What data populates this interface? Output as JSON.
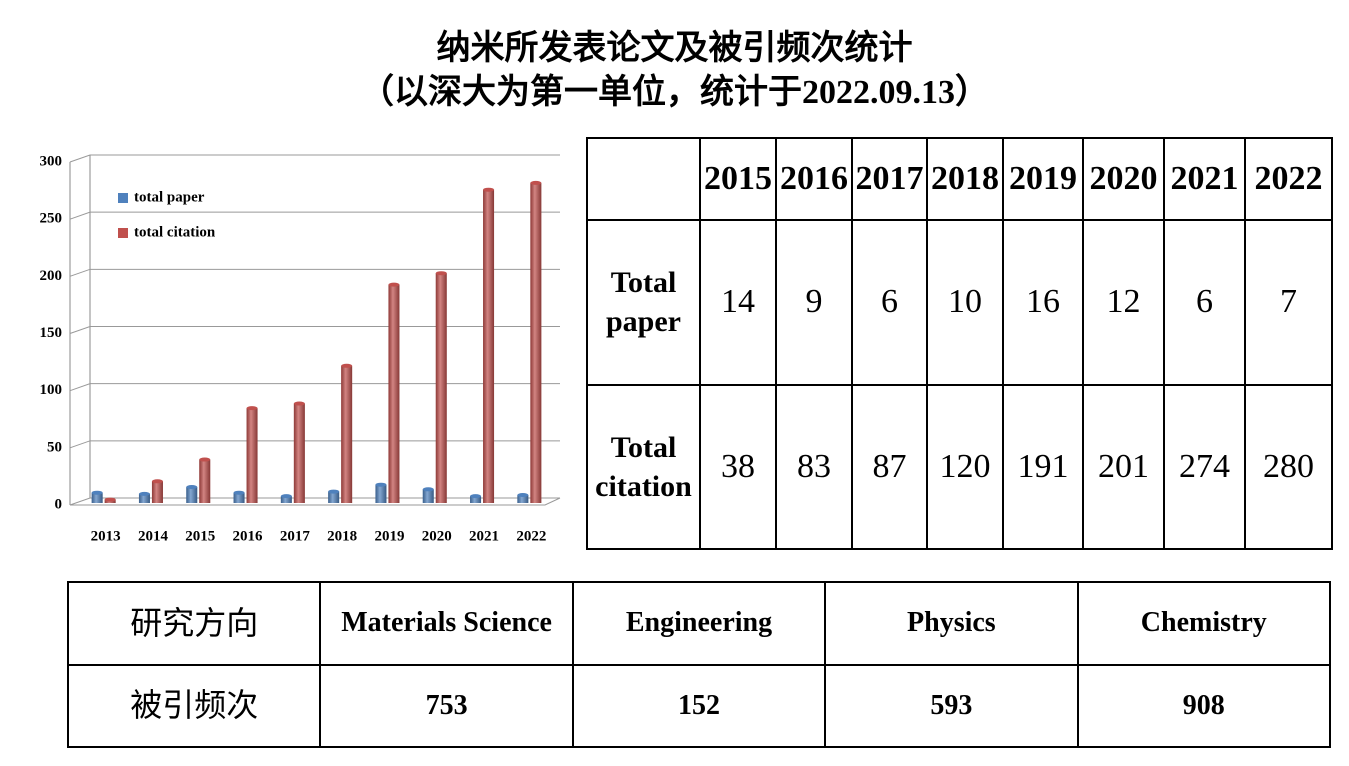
{
  "header": {
    "title": "纳米所发表论文及被引频次统计",
    "subtitle": "（以深大为第一单位，统计于2022.09.13）"
  },
  "chart_data": {
    "type": "bar",
    "categories": [
      "2013",
      "2014",
      "2015",
      "2016",
      "2017",
      "2018",
      "2019",
      "2020",
      "2021",
      "2022"
    ],
    "series": [
      {
        "name": "total paper",
        "color": "#4f81bd",
        "values": [
          9,
          8,
          14,
          9,
          6,
          10,
          16,
          12,
          6,
          7
        ]
      },
      {
        "name": "total citation",
        "color": "#c0504d",
        "values": [
          3,
          19,
          38,
          83,
          87,
          120,
          191,
          201,
          274,
          280
        ]
      }
    ],
    "ylim": [
      0,
      300
    ],
    "yticks": [
      0,
      50,
      100,
      150,
      200,
      250,
      300
    ],
    "grid": true,
    "legend": "upper left"
  },
  "table1": {
    "header": [
      "2015",
      "2016",
      "2017",
      "2018",
      "2019",
      "2020",
      "2021",
      "2022"
    ],
    "rows": [
      [
        "Total paper",
        "14",
        "9",
        "6",
        "10",
        "16",
        "12",
        "6",
        "7"
      ],
      [
        "Total citation",
        "38",
        "83",
        "87",
        "120",
        "191",
        "201",
        "274",
        "280"
      ]
    ]
  },
  "table2": {
    "rows": [
      [
        "研究方向",
        "Materials Science",
        "Engineering",
        "Physics",
        "Chemistry"
      ],
      [
        "被引频次",
        "753",
        "152",
        "593",
        "908"
      ]
    ]
  }
}
